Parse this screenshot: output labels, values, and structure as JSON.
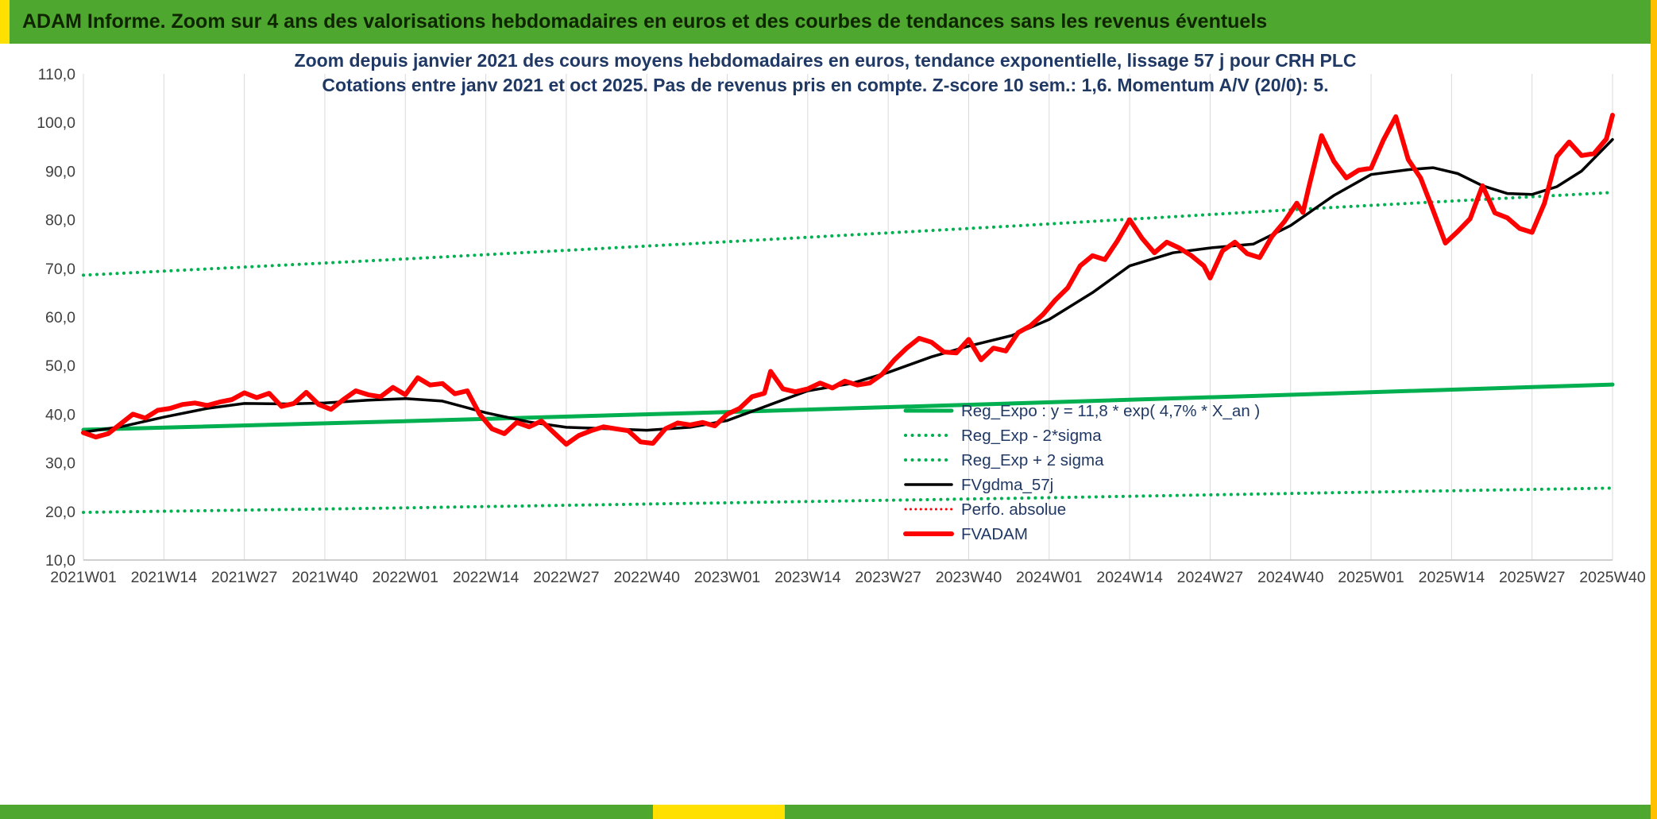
{
  "header": {
    "title": "ADAM Informe. Zoom sur 4 ans des valorisations hebdomadaires en euros et des courbes de tendances sans les revenus éventuels"
  },
  "colors": {
    "banner_green": "#4EA72E",
    "accent_yellow": "#FFE000",
    "accent_gold": "#FFC000",
    "title_navy": "#1F3864",
    "series_green": "#00B050",
    "series_red": "#FF0000",
    "series_black": "#000000",
    "gridline_gray": "#D9D9D9"
  },
  "chart_data": {
    "type": "line",
    "title": "Zoom depuis janvier 2021 des cours moyens hebdomadaires en euros, tendance exponentielle, lissage 57 j pour CRH PLC",
    "subtitle": "Cotations entre janv 2021 et oct 2025. Pas de revenus pris en compte. Z-score 10 sem.: 1,6. Momentum A/V (20/0): 5.",
    "grid": "vertical-only",
    "legend_position": "inside-right",
    "x_axis": {
      "max_week": 247,
      "tick_weeks": [
        0,
        13,
        26,
        39,
        52,
        65,
        78,
        91,
        104,
        117,
        130,
        143,
        156,
        169,
        182,
        195,
        208,
        221,
        234,
        247
      ],
      "tick_labels": [
        "2021W01",
        "2021W14",
        "2021W27",
        "2021W40",
        "2022W01",
        "2022W14",
        "2022W27",
        "2022W40",
        "2023W01",
        "2023W14",
        "2023W27",
        "2023W40",
        "2024W01",
        "2024W14",
        "2024W27",
        "2024W40",
        "2025W01",
        "2025W14",
        "2025W27",
        "2025W40"
      ]
    },
    "y_axis": {
      "min": 10,
      "max": 110,
      "ticks": [
        10,
        20,
        30,
        40,
        50,
        60,
        70,
        80,
        90,
        100,
        110
      ],
      "tick_labels": [
        "10,0",
        "20,0",
        "30,0",
        "40,0",
        "50,0",
        "60,0",
        "70,0",
        "80,0",
        "90,0",
        "100,0",
        "110,0"
      ]
    },
    "series": [
      {
        "name": "Reg_Expo",
        "label": "Reg_Expo : y = 11,8 * exp( 4,7% *  X_an )",
        "color": "#00B050",
        "style": "solid",
        "width": 5,
        "points": [
          [
            0,
            36.8
          ],
          [
            50,
            38.5
          ],
          [
            100,
            40.3
          ],
          [
            150,
            42.2
          ],
          [
            200,
            44.2
          ],
          [
            247,
            46.1
          ]
        ]
      },
      {
        "name": "Reg_Exp_minus_2sigma",
        "label": "Reg_Exp - 2*sigma",
        "color": "#00B050",
        "style": "dotted",
        "width": 4,
        "points": [
          [
            0,
            19.8
          ],
          [
            50,
            20.7
          ],
          [
            100,
            21.7
          ],
          [
            150,
            22.7
          ],
          [
            200,
            23.8
          ],
          [
            247,
            24.8
          ]
        ]
      },
      {
        "name": "Reg_Exp_plus_2sigma",
        "label": "Reg_Exp + 2 sigma",
        "color": "#00B050",
        "style": "dotted",
        "width": 4,
        "points": [
          [
            0,
            68.6
          ],
          [
            50,
            71.8
          ],
          [
            100,
            75.2
          ],
          [
            150,
            78.7
          ],
          [
            200,
            82.4
          ],
          [
            247,
            85.6
          ]
        ]
      },
      {
        "name": "FVgdma_57j",
        "label": "FVgdma_57j",
        "color": "#000000",
        "style": "solid",
        "width": 3.5,
        "points": [
          [
            0,
            36.3
          ],
          [
            6,
            37.4
          ],
          [
            13,
            39.4
          ],
          [
            20,
            41.2
          ],
          [
            26,
            42.2
          ],
          [
            33,
            42.1
          ],
          [
            39,
            42.3
          ],
          [
            46,
            42.9
          ],
          [
            52,
            43.2
          ],
          [
            58,
            42.7
          ],
          [
            65,
            40.3
          ],
          [
            72,
            38.4
          ],
          [
            78,
            37.3
          ],
          [
            85,
            37.0
          ],
          [
            91,
            36.7
          ],
          [
            98,
            37.3
          ],
          [
            104,
            38.7
          ],
          [
            111,
            42.0
          ],
          [
            117,
            44.8
          ],
          [
            124,
            46.3
          ],
          [
            130,
            48.6
          ],
          [
            137,
            51.8
          ],
          [
            143,
            54.0
          ],
          [
            150,
            56.2
          ],
          [
            156,
            59.5
          ],
          [
            163,
            65.0
          ],
          [
            169,
            70.5
          ],
          [
            176,
            73.2
          ],
          [
            182,
            74.2
          ],
          [
            189,
            75.0
          ],
          [
            195,
            78.8
          ],
          [
            202,
            85.0
          ],
          [
            208,
            89.3
          ],
          [
            214,
            90.3
          ],
          [
            218,
            90.7
          ],
          [
            222,
            89.5
          ],
          [
            226,
            87.0
          ],
          [
            230,
            85.4
          ],
          [
            234,
            85.2
          ],
          [
            238,
            86.8
          ],
          [
            242,
            90.0
          ],
          [
            247,
            96.5
          ]
        ]
      },
      {
        "name": "Perfo_absolue",
        "label": "Perfo. absolue",
        "color": "#FF0000",
        "style": "dotted",
        "width": 3,
        "points": []
      },
      {
        "name": "FVADAM",
        "label": "FVADAM",
        "color": "#FF0000",
        "style": "solid",
        "width": 6,
        "points": [
          [
            0,
            36.2
          ],
          [
            2,
            35.3
          ],
          [
            4,
            36.0
          ],
          [
            6,
            38.0
          ],
          [
            8,
            40.0
          ],
          [
            10,
            39.2
          ],
          [
            12,
            40.8
          ],
          [
            14,
            41.2
          ],
          [
            16,
            42.0
          ],
          [
            18,
            42.3
          ],
          [
            20,
            41.8
          ],
          [
            22,
            42.5
          ],
          [
            24,
            43.0
          ],
          [
            26,
            44.4
          ],
          [
            28,
            43.4
          ],
          [
            30,
            44.3
          ],
          [
            32,
            41.6
          ],
          [
            34,
            42.2
          ],
          [
            36,
            44.5
          ],
          [
            38,
            42.0
          ],
          [
            40,
            41.0
          ],
          [
            42,
            43.0
          ],
          [
            44,
            44.8
          ],
          [
            46,
            44.0
          ],
          [
            48,
            43.6
          ],
          [
            50,
            45.5
          ],
          [
            52,
            44.0
          ],
          [
            54,
            47.5
          ],
          [
            56,
            46.0
          ],
          [
            58,
            46.3
          ],
          [
            60,
            44.2
          ],
          [
            62,
            44.8
          ],
          [
            64,
            40.0
          ],
          [
            66,
            37.0
          ],
          [
            68,
            36.0
          ],
          [
            70,
            38.3
          ],
          [
            72,
            37.4
          ],
          [
            74,
            38.6
          ],
          [
            76,
            36.2
          ],
          [
            78,
            33.8
          ],
          [
            80,
            35.6
          ],
          [
            82,
            36.6
          ],
          [
            84,
            37.4
          ],
          [
            86,
            37.0
          ],
          [
            88,
            36.6
          ],
          [
            90,
            34.3
          ],
          [
            92,
            34.0
          ],
          [
            94,
            37.0
          ],
          [
            96,
            38.2
          ],
          [
            98,
            37.8
          ],
          [
            100,
            38.3
          ],
          [
            102,
            37.6
          ],
          [
            104,
            40.0
          ],
          [
            106,
            41.2
          ],
          [
            108,
            43.6
          ],
          [
            110,
            44.3
          ],
          [
            111,
            48.8
          ],
          [
            113,
            45.2
          ],
          [
            115,
            44.6
          ],
          [
            117,
            45.2
          ],
          [
            119,
            46.4
          ],
          [
            121,
            45.4
          ],
          [
            123,
            46.8
          ],
          [
            125,
            46.0
          ],
          [
            127,
            46.4
          ],
          [
            129,
            48.2
          ],
          [
            131,
            51.2
          ],
          [
            133,
            53.6
          ],
          [
            135,
            55.6
          ],
          [
            137,
            54.8
          ],
          [
            139,
            52.8
          ],
          [
            141,
            52.6
          ],
          [
            143,
            55.4
          ],
          [
            145,
            51.2
          ],
          [
            147,
            53.6
          ],
          [
            149,
            53.0
          ],
          [
            151,
            56.8
          ],
          [
            153,
            58.2
          ],
          [
            155,
            60.5
          ],
          [
            157,
            63.5
          ],
          [
            159,
            66.0
          ],
          [
            161,
            70.5
          ],
          [
            163,
            72.6
          ],
          [
            165,
            71.8
          ],
          [
            167,
            75.6
          ],
          [
            169,
            80.0
          ],
          [
            171,
            76.2
          ],
          [
            173,
            73.2
          ],
          [
            175,
            75.4
          ],
          [
            177,
            74.2
          ],
          [
            179,
            72.6
          ],
          [
            181,
            70.5
          ],
          [
            182,
            68.0
          ],
          [
            184,
            73.6
          ],
          [
            186,
            75.4
          ],
          [
            188,
            73.0
          ],
          [
            190,
            72.2
          ],
          [
            192,
            76.6
          ],
          [
            194,
            79.6
          ],
          [
            196,
            83.4
          ],
          [
            197,
            81.5
          ],
          [
            198,
            87.0
          ],
          [
            200,
            97.3
          ],
          [
            202,
            92.0
          ],
          [
            204,
            88.6
          ],
          [
            206,
            90.2
          ],
          [
            208,
            90.6
          ],
          [
            210,
            96.4
          ],
          [
            212,
            101.2
          ],
          [
            214,
            92.4
          ],
          [
            216,
            88.6
          ],
          [
            218,
            82.0
          ],
          [
            220,
            75.2
          ],
          [
            222,
            77.6
          ],
          [
            224,
            80.2
          ],
          [
            226,
            87.0
          ],
          [
            228,
            81.4
          ],
          [
            230,
            80.4
          ],
          [
            232,
            78.2
          ],
          [
            234,
            77.4
          ],
          [
            236,
            83.4
          ],
          [
            238,
            93.0
          ],
          [
            240,
            96.0
          ],
          [
            242,
            93.2
          ],
          [
            244,
            93.6
          ],
          [
            246,
            96.6
          ],
          [
            247,
            101.5
          ]
        ]
      }
    ]
  }
}
